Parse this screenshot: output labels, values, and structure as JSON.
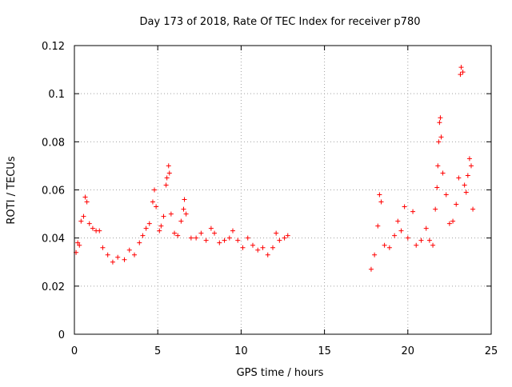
{
  "chart_data": {
    "type": "scatter",
    "title": "Day 173 of 2018, Rate Of TEC Index for receiver p780",
    "xlabel": "GPS time / hours",
    "ylabel": "ROTI / TECUs",
    "xlim": [
      0,
      25
    ],
    "ylim": [
      0,
      0.12
    ],
    "xticks": [
      0,
      5,
      10,
      15,
      20,
      25
    ],
    "yticks": [
      0,
      0.02,
      0.04,
      0.06,
      0.08,
      0.1,
      0.12
    ],
    "xtick_labels": [
      "0",
      "5",
      "10",
      "15",
      "20",
      "25"
    ],
    "ytick_labels": [
      "0",
      "0.02",
      "0.04",
      "0.06",
      "0.08",
      "0.1",
      "0.12"
    ],
    "grid": true,
    "marker": "+",
    "color": "#ff0000",
    "series": [
      {
        "points": [
          [
            0.1,
            0.034
          ],
          [
            0.2,
            0.038
          ],
          [
            0.3,
            0.037
          ],
          [
            0.4,
            0.047
          ],
          [
            0.55,
            0.049
          ],
          [
            0.65,
            0.057
          ],
          [
            0.75,
            0.055
          ],
          [
            0.9,
            0.046
          ],
          [
            1.1,
            0.044
          ],
          [
            1.3,
            0.043
          ],
          [
            1.5,
            0.043
          ],
          [
            1.7,
            0.036
          ],
          [
            2.0,
            0.033
          ],
          [
            2.3,
            0.03
          ],
          [
            2.6,
            0.032
          ],
          [
            3.0,
            0.031
          ],
          [
            3.3,
            0.035
          ],
          [
            3.6,
            0.033
          ],
          [
            3.9,
            0.038
          ],
          [
            4.1,
            0.041
          ],
          [
            4.3,
            0.044
          ],
          [
            4.5,
            0.046
          ],
          [
            4.7,
            0.055
          ],
          [
            4.8,
            0.06
          ],
          [
            4.9,
            0.053
          ],
          [
            5.1,
            0.043
          ],
          [
            5.2,
            0.045
          ],
          [
            5.35,
            0.049
          ],
          [
            5.5,
            0.062
          ],
          [
            5.55,
            0.065
          ],
          [
            5.65,
            0.07
          ],
          [
            5.7,
            0.067
          ],
          [
            5.8,
            0.05
          ],
          [
            6.0,
            0.042
          ],
          [
            6.2,
            0.041
          ],
          [
            6.4,
            0.047
          ],
          [
            6.55,
            0.052
          ],
          [
            6.6,
            0.056
          ],
          [
            6.7,
            0.05
          ],
          [
            7.0,
            0.04
          ],
          [
            7.3,
            0.04
          ],
          [
            7.6,
            0.042
          ],
          [
            7.9,
            0.039
          ],
          [
            8.2,
            0.044
          ],
          [
            8.4,
            0.042
          ],
          [
            8.7,
            0.038
          ],
          [
            9.0,
            0.039
          ],
          [
            9.3,
            0.04
          ],
          [
            9.5,
            0.043
          ],
          [
            9.8,
            0.039
          ],
          [
            10.1,
            0.036
          ],
          [
            10.4,
            0.04
          ],
          [
            10.7,
            0.037
          ],
          [
            11.0,
            0.035
          ],
          [
            11.3,
            0.036
          ],
          [
            11.6,
            0.033
          ],
          [
            11.9,
            0.036
          ],
          [
            12.1,
            0.042
          ],
          [
            12.3,
            0.039
          ],
          [
            12.6,
            0.04
          ],
          [
            12.8,
            0.041
          ],
          [
            17.8,
            0.027
          ],
          [
            18.0,
            0.033
          ],
          [
            18.2,
            0.045
          ],
          [
            18.3,
            0.058
          ],
          [
            18.4,
            0.055
          ],
          [
            18.6,
            0.037
          ],
          [
            18.9,
            0.036
          ],
          [
            19.2,
            0.041
          ],
          [
            19.4,
            0.047
          ],
          [
            19.6,
            0.043
          ],
          [
            19.8,
            0.053
          ],
          [
            20.0,
            0.04
          ],
          [
            20.3,
            0.051
          ],
          [
            20.5,
            0.037
          ],
          [
            20.8,
            0.039
          ],
          [
            21.1,
            0.044
          ],
          [
            21.3,
            0.039
          ],
          [
            21.5,
            0.037
          ],
          [
            21.65,
            0.052
          ],
          [
            21.75,
            0.061
          ],
          [
            21.8,
            0.07
          ],
          [
            21.85,
            0.08
          ],
          [
            21.9,
            0.088
          ],
          [
            21.95,
            0.09
          ],
          [
            22.0,
            0.082
          ],
          [
            22.1,
            0.067
          ],
          [
            22.3,
            0.058
          ],
          [
            22.5,
            0.046
          ],
          [
            22.7,
            0.047
          ],
          [
            22.9,
            0.054
          ],
          [
            23.05,
            0.065
          ],
          [
            23.15,
            0.108
          ],
          [
            23.2,
            0.111
          ],
          [
            23.3,
            0.109
          ],
          [
            23.4,
            0.062
          ],
          [
            23.5,
            0.059
          ],
          [
            23.6,
            0.066
          ],
          [
            23.7,
            0.073
          ],
          [
            23.8,
            0.07
          ],
          [
            23.9,
            0.052
          ]
        ]
      }
    ]
  }
}
